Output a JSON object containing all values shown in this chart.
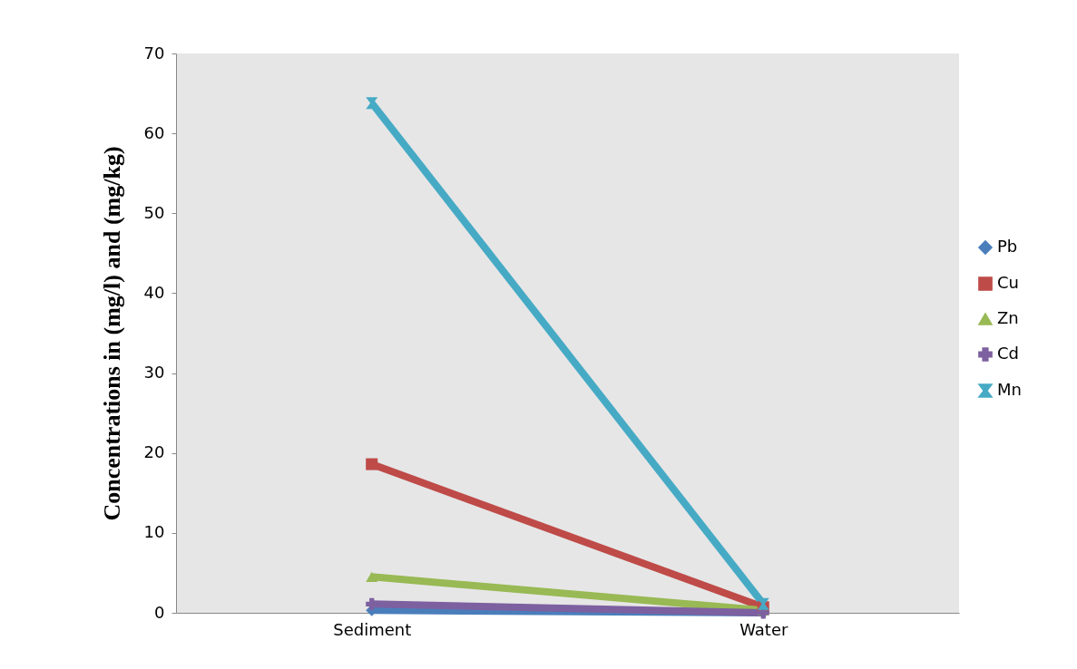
{
  "chart_data": {
    "type": "line",
    "ylabel": "Concentrations in (mg/l) and (mg/kg)",
    "categories": [
      "Sediment",
      "Water"
    ],
    "series": [
      {
        "name": "Pb",
        "color": "#4a7ebb",
        "marker": "diamond",
        "values": [
          0.3,
          0
        ]
      },
      {
        "name": "Cu",
        "color": "#be4b48",
        "marker": "square",
        "values": [
          18.6,
          0.7
        ]
      },
      {
        "name": "Zn",
        "color": "#98b954",
        "marker": "triangle",
        "values": [
          4.5,
          0.3
        ]
      },
      {
        "name": "Cd",
        "color": "#7d60a0",
        "marker": "cross",
        "values": [
          1.1,
          0
        ]
      },
      {
        "name": "Mn",
        "color": "#46aac5",
        "marker": "star",
        "values": [
          63.8,
          1.1
        ]
      }
    ],
    "ylim": [
      0,
      70
    ],
    "yticks": [
      0,
      10,
      20,
      30,
      40,
      50,
      60,
      70
    ],
    "grid": false,
    "legend": "right",
    "line_style": "solid"
  }
}
